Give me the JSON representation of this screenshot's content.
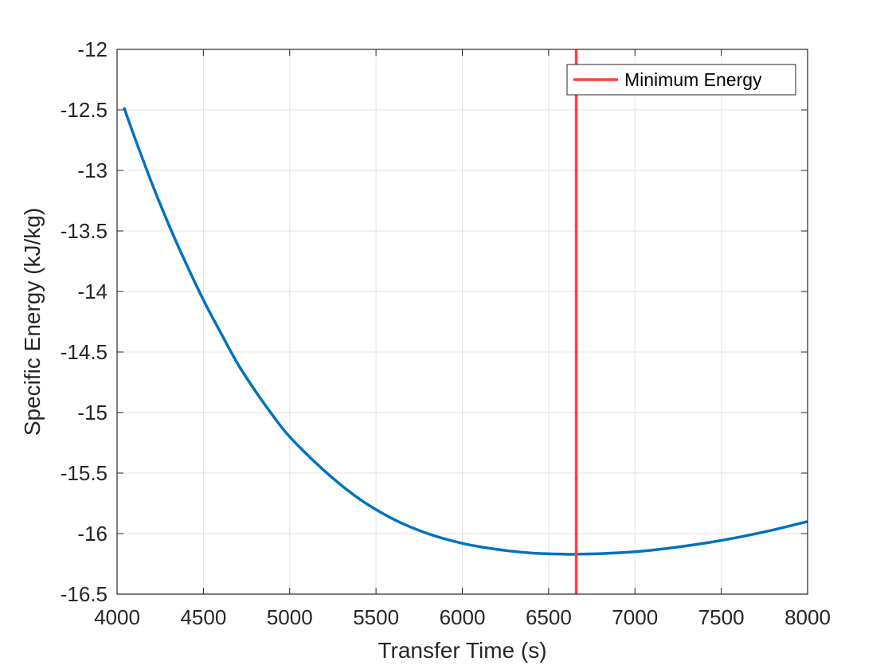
{
  "chart_data": {
    "type": "line",
    "title": "",
    "xlabel": "Transfer Time (s)",
    "ylabel": "Specific Energy (kJ/kg)",
    "xlim": [
      4000,
      8000
    ],
    "ylim": [
      -16.5,
      -12
    ],
    "xticks": [
      4000,
      4500,
      5000,
      5500,
      6000,
      6500,
      7000,
      7500,
      8000
    ],
    "yticks": [
      -12,
      -12.5,
      -13,
      -13.5,
      -14,
      -14.5,
      -15,
      -15.5,
      -16,
      -16.5
    ],
    "xtick_labels": [
      "4000",
      "4500",
      "5000",
      "5500",
      "6000",
      "6500",
      "7000",
      "7500",
      "8000"
    ],
    "ytick_labels": [
      "-12",
      "-12.5",
      "-13",
      "-13.5",
      "-14",
      "-14.5",
      "-15",
      "-15.5",
      "-16",
      "-16.5"
    ],
    "grid": true,
    "legend_position": "top-right",
    "series": [
      {
        "color": "#0072BD",
        "x": [
          4040,
          4100,
          4200,
          4300,
          4400,
          4500,
          4600,
          4700,
          4800,
          4900,
          5000,
          5200,
          5400,
          5600,
          5800,
          6000,
          6200,
          6400,
          6600,
          6660,
          6800,
          7000,
          7200,
          7400,
          7600,
          7800,
          8000
        ],
        "y": [
          -12.48,
          -12.72,
          -13.1,
          -13.45,
          -13.77,
          -14.07,
          -14.34,
          -14.6,
          -14.82,
          -15.02,
          -15.2,
          -15.48,
          -15.71,
          -15.88,
          -16.0,
          -16.08,
          -16.13,
          -16.16,
          -16.17,
          -16.17,
          -16.165,
          -16.15,
          -16.12,
          -16.08,
          -16.03,
          -15.97,
          -15.9
        ]
      },
      {
        "name": "Minimum Energy",
        "type": "vline",
        "color": "#FF4040",
        "x": 6660
      }
    ],
    "legend": [
      "Minimum Energy"
    ]
  }
}
